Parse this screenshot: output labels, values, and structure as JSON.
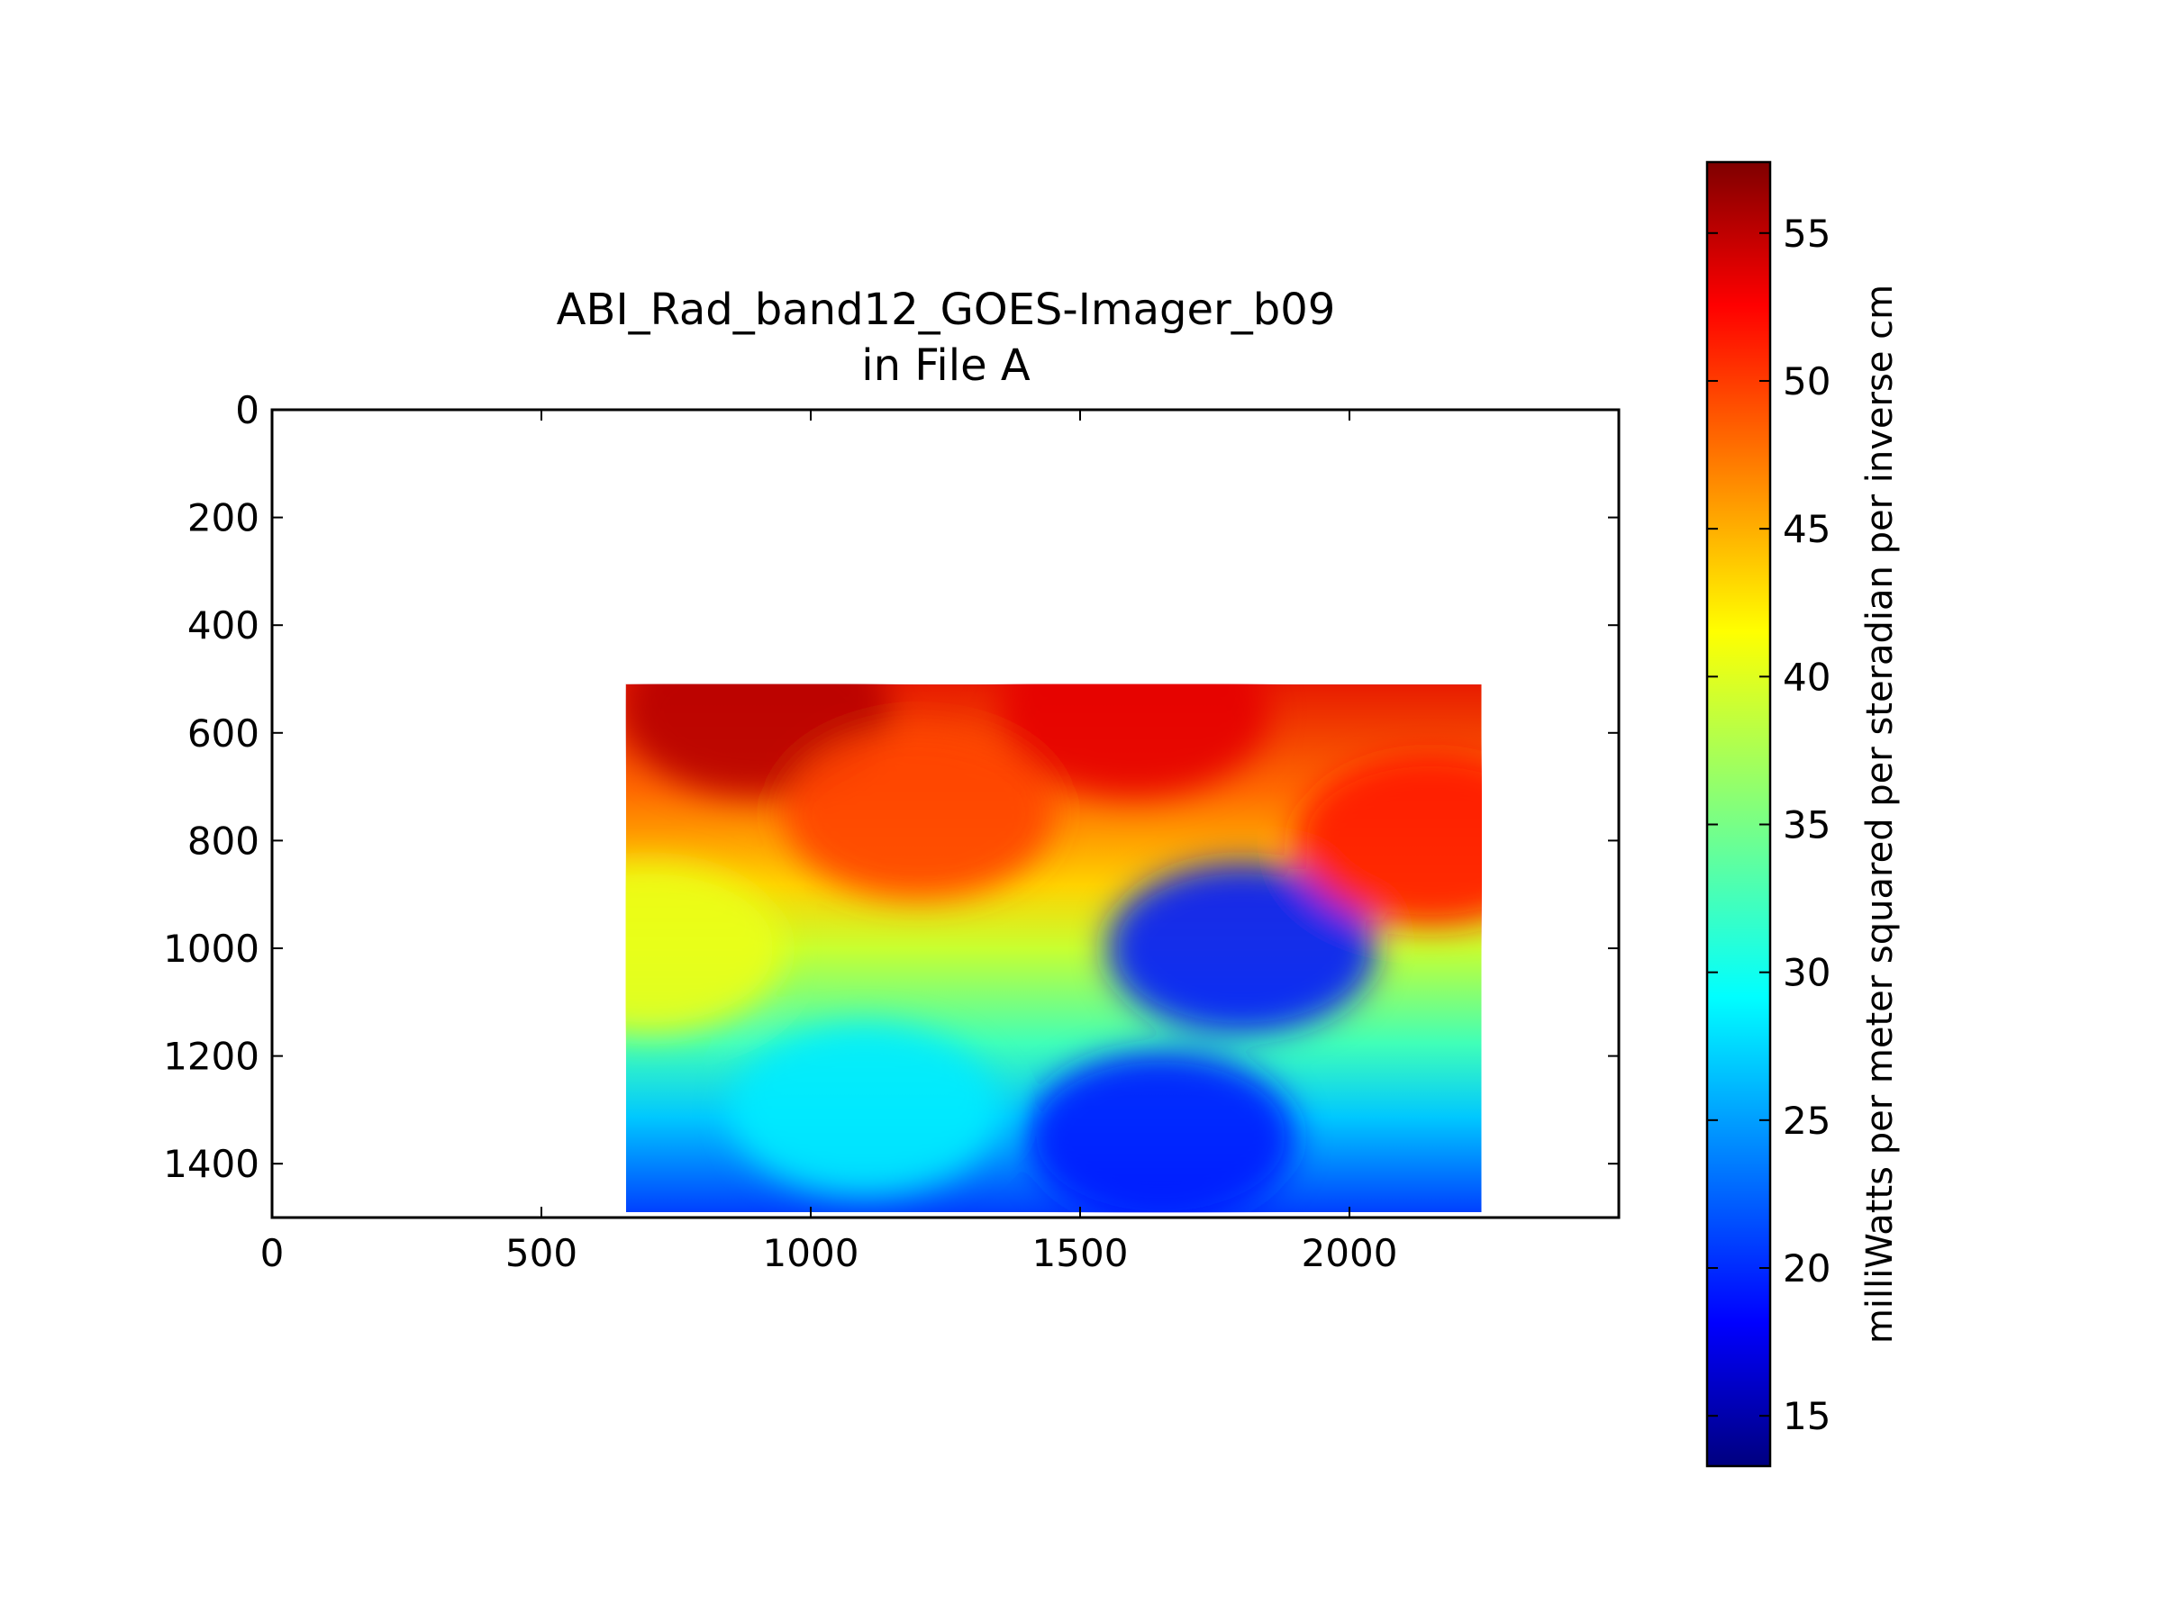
{
  "chart_data": {
    "type": "heatmap",
    "title": [
      "ABI_Rad_band12_GOES-Imager_b09",
      "in File A"
    ],
    "xlabel": "",
    "ylabel": "",
    "xlim": [
      0,
      2500
    ],
    "ylim": [
      1500,
      0
    ],
    "x_ticks": [
      0,
      500,
      1000,
      1500,
      2000
    ],
    "y_ticks": [
      0,
      200,
      400,
      600,
      800,
      1000,
      1200,
      1400
    ],
    "grid": false,
    "data_extent": {
      "x": [
        657,
        2245
      ],
      "y": [
        510,
        1490
      ]
    },
    "colormap": "jet",
    "colorbar": {
      "label": "milliWatts per meter squared per steradian per inverse cm",
      "range": [
        13.3,
        57.4
      ],
      "ticks": [
        15,
        20,
        25,
        30,
        35,
        40,
        45,
        50,
        55
      ],
      "placement": "right"
    },
    "field_description_points": [
      {
        "x": 900,
        "y": 560,
        "value": 55
      },
      {
        "x": 1600,
        "y": 560,
        "value": 53
      },
      {
        "x": 1200,
        "y": 750,
        "value": 49
      },
      {
        "x": 700,
        "y": 1000,
        "value": 40
      },
      {
        "x": 1800,
        "y": 1000,
        "value": 20
      },
      {
        "x": 1100,
        "y": 1300,
        "value": 29
      },
      {
        "x": 1650,
        "y": 1350,
        "value": 20
      },
      {
        "x": 2150,
        "y": 800,
        "value": 51
      }
    ]
  },
  "colors": {
    "jet": [
      "#00007f",
      "#0000ff",
      "#007fff",
      "#00ffff",
      "#7fff7f",
      "#ffff00",
      "#ff7f00",
      "#ff0000",
      "#7f0000"
    ]
  }
}
